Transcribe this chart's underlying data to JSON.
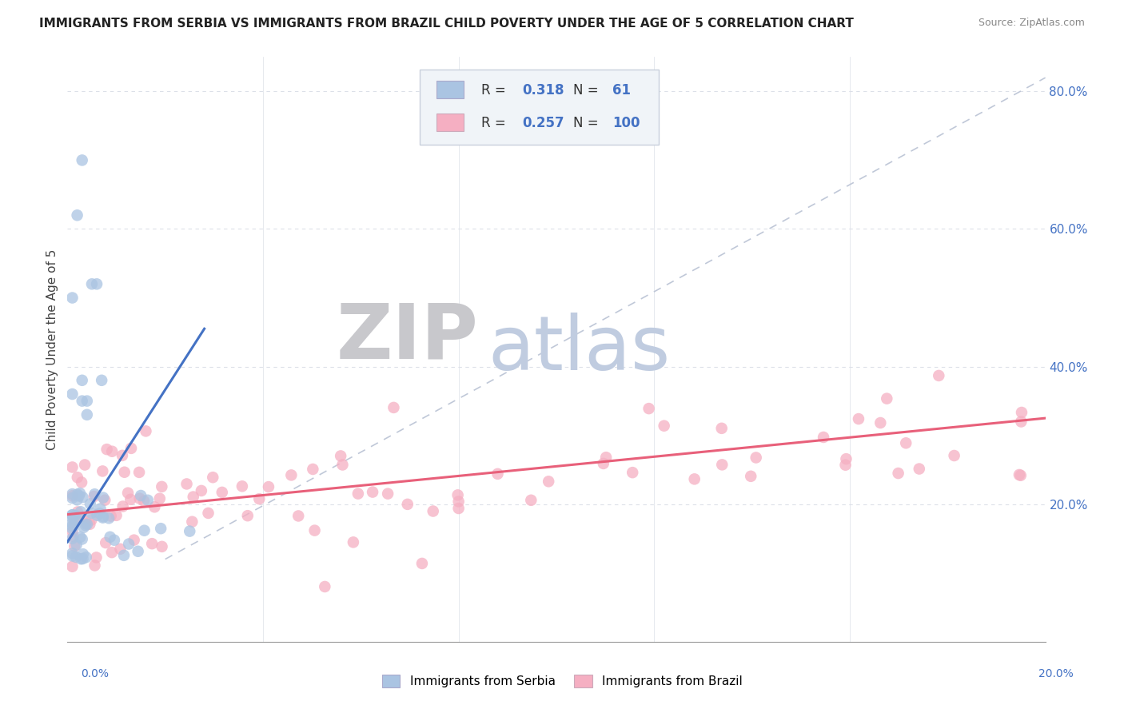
{
  "title": "IMMIGRANTS FROM SERBIA VS IMMIGRANTS FROM BRAZIL CHILD POVERTY UNDER THE AGE OF 5 CORRELATION CHART",
  "source": "Source: ZipAtlas.com",
  "ylabel": "Child Poverty Under the Age of 5",
  "yticks": [
    0.0,
    0.2,
    0.4,
    0.6,
    0.8
  ],
  "ytick_labels": [
    "",
    "20.0%",
    "40.0%",
    "60.0%",
    "80.0%"
  ],
  "xlim": [
    0.0,
    0.2
  ],
  "ylim": [
    0.0,
    0.85
  ],
  "serbia_R": "0.318",
  "serbia_N": "61",
  "brazil_R": "0.257",
  "brazil_N": "100",
  "serbia_color": "#aac4e2",
  "brazil_color": "#f5afc2",
  "serbia_line_color": "#4472c4",
  "brazil_line_color": "#e8607a",
  "diag_color": "#c0c8d8",
  "watermark_ZIP_color": "#c8c8cc",
  "watermark_atlas_color": "#c0cce0",
  "bg_color": "#ffffff",
  "grid_color": "#dce0e8",
  "legend_box_color": "#f0f4f8",
  "legend_edge_color": "#c8d0dc",
  "serbia_line_x0": 0.0,
  "serbia_line_y0": 0.145,
  "serbia_line_x1": 0.028,
  "serbia_line_y1": 0.455,
  "brazil_line_x0": 0.0,
  "brazil_line_y0": 0.185,
  "brazil_line_x1": 0.2,
  "brazil_line_y1": 0.325
}
